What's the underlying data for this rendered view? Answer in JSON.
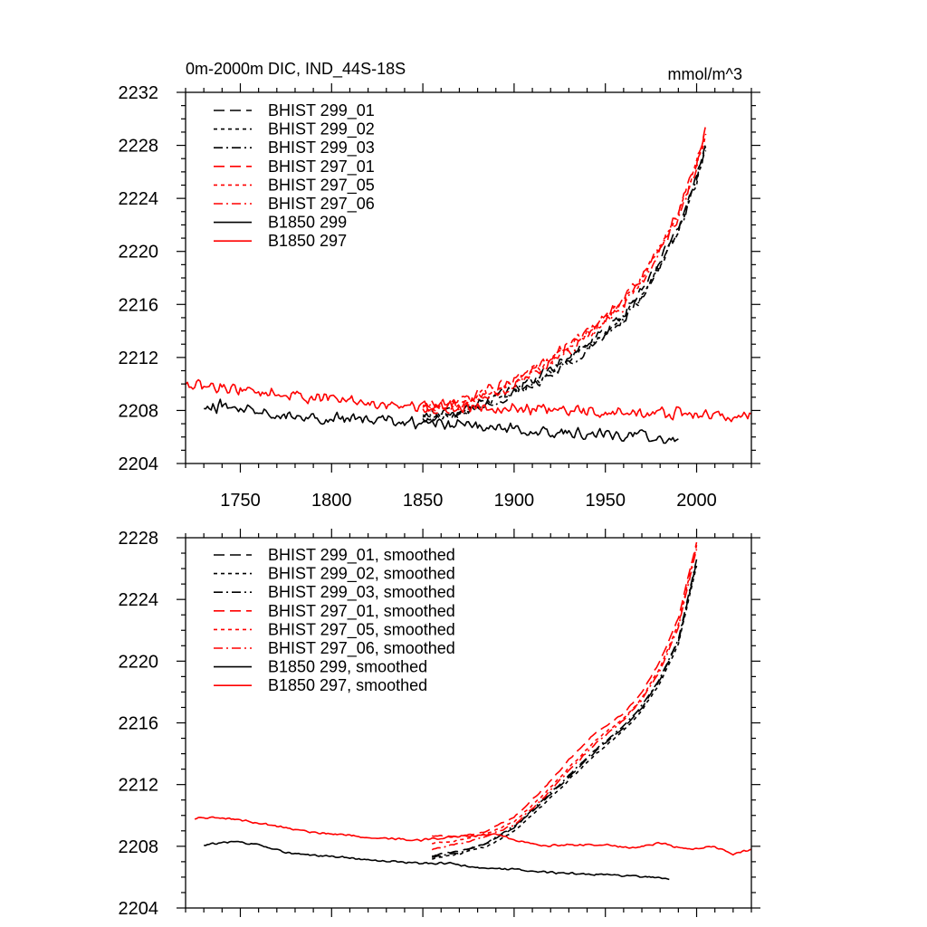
{
  "chart_data": [
    {
      "type": "line",
      "title": "0m-2000m DIC, IND_44S-18S",
      "units": "mmol/m^3",
      "xlabel": "",
      "ylabel": "",
      "xlim": [
        1720,
        2030
      ],
      "ylim": [
        2204,
        2232
      ],
      "xticks": [
        1750,
        1800,
        1850,
        1900,
        1950,
        2000
      ],
      "yticks": [
        2204,
        2208,
        2212,
        2216,
        2220,
        2224,
        2228,
        2232
      ],
      "show_x_tick_labels": true,
      "legend_position": "top-left",
      "series": [
        {
          "name": "BHIST 299_01",
          "color": "#000000",
          "dash": "long-dash",
          "noise": 0.45,
          "points": [
            [
              1850,
              2207.6
            ],
            [
              1870,
              2208.0
            ],
            [
              1890,
              2209.0
            ],
            [
              1910,
              2210.3
            ],
            [
              1930,
              2212.1
            ],
            [
              1950,
              2214.0
            ],
            [
              1960,
              2215.3
            ],
            [
              1970,
              2217.0
            ],
            [
              1980,
              2219.3
            ],
            [
              1990,
              2222.0
            ],
            [
              2000,
              2225.6
            ],
            [
              2005,
              2228.2
            ]
          ]
        },
        {
          "name": "BHIST 299_02",
          "color": "#000000",
          "dash": "short-dash",
          "noise": 0.45,
          "points": [
            [
              1850,
              2207.4
            ],
            [
              1870,
              2207.9
            ],
            [
              1890,
              2208.8
            ],
            [
              1910,
              2210.0
            ],
            [
              1930,
              2211.8
            ],
            [
              1950,
              2213.7
            ],
            [
              1960,
              2215.0
            ],
            [
              1970,
              2216.7
            ],
            [
              1980,
              2219.0
            ],
            [
              1990,
              2221.7
            ],
            [
              2000,
              2225.3
            ],
            [
              2005,
              2228.0
            ]
          ]
        },
        {
          "name": "BHIST 299_03",
          "color": "#000000",
          "dash": "dash-dot",
          "noise": 0.45,
          "points": [
            [
              1850,
              2207.3
            ],
            [
              1870,
              2207.8
            ],
            [
              1890,
              2208.7
            ],
            [
              1910,
              2209.9
            ],
            [
              1930,
              2211.6
            ],
            [
              1950,
              2213.6
            ],
            [
              1960,
              2214.9
            ],
            [
              1970,
              2216.6
            ],
            [
              1980,
              2218.9
            ],
            [
              1990,
              2221.6
            ],
            [
              2000,
              2225.2
            ],
            [
              2005,
              2227.8
            ]
          ]
        },
        {
          "name": "BHIST 297_01",
          "color": "#ff0000",
          "dash": "long-dash",
          "noise": 0.5,
          "points": [
            [
              1850,
              2208.3
            ],
            [
              1870,
              2208.7
            ],
            [
              1890,
              2209.7
            ],
            [
              1910,
              2211.1
            ],
            [
              1930,
              2213.0
            ],
            [
              1950,
              2215.0
            ],
            [
              1960,
              2216.4
            ],
            [
              1970,
              2218.1
            ],
            [
              1980,
              2220.4
            ],
            [
              1990,
              2223.1
            ],
            [
              2000,
              2226.7
            ],
            [
              2005,
              2229.2
            ]
          ]
        },
        {
          "name": "BHIST 297_05",
          "color": "#ff0000",
          "dash": "short-dash",
          "noise": 0.5,
          "points": [
            [
              1850,
              2208.1
            ],
            [
              1870,
              2208.5
            ],
            [
              1890,
              2209.5
            ],
            [
              1910,
              2210.9
            ],
            [
              1930,
              2212.8
            ],
            [
              1950,
              2214.8
            ],
            [
              1960,
              2216.2
            ],
            [
              1970,
              2217.9
            ],
            [
              1980,
              2220.2
            ],
            [
              1990,
              2222.9
            ],
            [
              2000,
              2226.5
            ],
            [
              2005,
              2229.0
            ]
          ]
        },
        {
          "name": "BHIST 297_06",
          "color": "#ff0000",
          "dash": "dash-dot",
          "noise": 0.5,
          "points": [
            [
              1850,
              2208.0
            ],
            [
              1870,
              2208.4
            ],
            [
              1890,
              2209.3
            ],
            [
              1910,
              2210.7
            ],
            [
              1930,
              2212.6
            ],
            [
              1950,
              2214.6
            ],
            [
              1960,
              2216.0
            ],
            [
              1970,
              2217.7
            ],
            [
              1980,
              2220.0
            ],
            [
              1990,
              2222.7
            ],
            [
              2000,
              2226.3
            ],
            [
              2005,
              2229.1
            ]
          ]
        },
        {
          "name": "B1850 299",
          "color": "#000000",
          "dash": "solid",
          "noise": 0.55,
          "points": [
            [
              1730,
              2208.0
            ],
            [
              1740,
              2208.4
            ],
            [
              1760,
              2208.1
            ],
            [
              1780,
              2207.6
            ],
            [
              1800,
              2207.4
            ],
            [
              1820,
              2207.3
            ],
            [
              1840,
              2207.1
            ],
            [
              1860,
              2207.0
            ],
            [
              1880,
              2206.8
            ],
            [
              1900,
              2206.6
            ],
            [
              1920,
              2206.4
            ],
            [
              1940,
              2206.3
            ],
            [
              1960,
              2206.1
            ],
            [
              1980,
              2206.0
            ],
            [
              1990,
              2205.7
            ]
          ]
        },
        {
          "name": "B1850 297",
          "color": "#ff0000",
          "dash": "solid",
          "noise": 0.55,
          "points": [
            [
              1720,
              2209.8
            ],
            [
              1740,
              2209.8
            ],
            [
              1760,
              2209.4
            ],
            [
              1780,
              2209.1
            ],
            [
              1800,
              2208.9
            ],
            [
              1820,
              2208.6
            ],
            [
              1840,
              2208.4
            ],
            [
              1860,
              2208.3
            ],
            [
              1880,
              2208.3
            ],
            [
              1900,
              2208.2
            ],
            [
              1920,
              2208.0
            ],
            [
              1940,
              2207.9
            ],
            [
              1960,
              2207.8
            ],
            [
              1980,
              2207.8
            ],
            [
              2000,
              2207.7
            ],
            [
              2020,
              2207.5
            ],
            [
              2030,
              2207.7
            ]
          ]
        }
      ]
    },
    {
      "type": "line",
      "title": "",
      "units": "",
      "xlabel": "",
      "ylabel": "",
      "xlim": [
        1720,
        2030
      ],
      "ylim": [
        2204,
        2228
      ],
      "xticks": [
        1750,
        1800,
        1850,
        1900,
        1950,
        2000
      ],
      "yticks": [
        2204,
        2208,
        2212,
        2216,
        2220,
        2224,
        2228
      ],
      "show_x_tick_labels": false,
      "legend_position": "top-left",
      "series": [
        {
          "name": "BHIST 299_01, smoothed",
          "color": "#000000",
          "dash": "long-dash",
          "noise": 0.06,
          "points": [
            [
              1855,
              2207.4
            ],
            [
              1870,
              2207.7
            ],
            [
              1885,
              2208.2
            ],
            [
              1900,
              2209.2
            ],
            [
              1915,
              2210.8
            ],
            [
              1930,
              2212.5
            ],
            [
              1945,
              2214.2
            ],
            [
              1960,
              2215.7
            ],
            [
              1970,
              2217.0
            ],
            [
              1980,
              2218.8
            ],
            [
              1990,
              2221.3
            ],
            [
              2000,
              2226.4
            ]
          ]
        },
        {
          "name": "BHIST 299_02, smoothed",
          "color": "#000000",
          "dash": "short-dash",
          "noise": 0.06,
          "points": [
            [
              1855,
              2207.2
            ],
            [
              1870,
              2207.5
            ],
            [
              1885,
              2208.0
            ],
            [
              1900,
              2209.0
            ],
            [
              1915,
              2210.6
            ],
            [
              1930,
              2212.3
            ],
            [
              1945,
              2214.0
            ],
            [
              1960,
              2215.5
            ],
            [
              1970,
              2216.8
            ],
            [
              1980,
              2218.6
            ],
            [
              1990,
              2221.1
            ],
            [
              2000,
              2226.2
            ]
          ]
        },
        {
          "name": "BHIST 299_03, smoothed",
          "color": "#000000",
          "dash": "dash-dot",
          "noise": 0.06,
          "points": [
            [
              1855,
              2207.3
            ],
            [
              1870,
              2207.6
            ],
            [
              1885,
              2208.2
            ],
            [
              1900,
              2209.3
            ],
            [
              1915,
              2210.9
            ],
            [
              1930,
              2212.6
            ],
            [
              1945,
              2214.3
            ],
            [
              1960,
              2215.8
            ],
            [
              1970,
              2217.1
            ],
            [
              1980,
              2218.9
            ],
            [
              1990,
              2221.4
            ],
            [
              2000,
              2226.6
            ]
          ]
        },
        {
          "name": "BHIST 297_01, smoothed",
          "color": "#ff0000",
          "dash": "long-dash",
          "noise": 0.06,
          "points": [
            [
              1855,
              2208.7
            ],
            [
              1870,
              2208.6
            ],
            [
              1885,
              2209.0
            ],
            [
              1900,
              2209.9
            ],
            [
              1915,
              2211.6
            ],
            [
              1930,
              2213.6
            ],
            [
              1945,
              2215.4
            ],
            [
              1960,
              2216.6
            ],
            [
              1970,
              2218.0
            ],
            [
              1980,
              2220.0
            ],
            [
              1990,
              2222.8
            ],
            [
              2000,
              2227.7
            ]
          ]
        },
        {
          "name": "BHIST 297_05, smoothed",
          "color": "#ff0000",
          "dash": "short-dash",
          "noise": 0.06,
          "points": [
            [
              1855,
              2208.2
            ],
            [
              1870,
              2208.4
            ],
            [
              1885,
              2208.8
            ],
            [
              1900,
              2209.6
            ],
            [
              1915,
              2211.2
            ],
            [
              1930,
              2213.1
            ],
            [
              1945,
              2214.9
            ],
            [
              1960,
              2216.3
            ],
            [
              1970,
              2217.6
            ],
            [
              1980,
              2219.6
            ],
            [
              1990,
              2222.4
            ],
            [
              2000,
              2227.5
            ]
          ]
        },
        {
          "name": "BHIST 297_06, smoothed",
          "color": "#ff0000",
          "dash": "dash-dot",
          "noise": 0.06,
          "points": [
            [
              1855,
              2207.8
            ],
            [
              1870,
              2208.2
            ],
            [
              1885,
              2208.6
            ],
            [
              1900,
              2209.4
            ],
            [
              1915,
              2211.0
            ],
            [
              1930,
              2212.9
            ],
            [
              1945,
              2214.7
            ],
            [
              1960,
              2216.2
            ],
            [
              1970,
              2217.5
            ],
            [
              1980,
              2219.4
            ],
            [
              1990,
              2222.2
            ],
            [
              2000,
              2227.3
            ]
          ]
        },
        {
          "name": "B1850 299, smoothed",
          "color": "#000000",
          "dash": "solid",
          "noise": 0.08,
          "points": [
            [
              1730,
              2208.1
            ],
            [
              1745,
              2208.3
            ],
            [
              1760,
              2208.1
            ],
            [
              1775,
              2207.6
            ],
            [
              1790,
              2207.4
            ],
            [
              1805,
              2207.3
            ],
            [
              1820,
              2207.1
            ],
            [
              1835,
              2207.0
            ],
            [
              1850,
              2206.9
            ],
            [
              1865,
              2206.9
            ],
            [
              1880,
              2206.6
            ],
            [
              1900,
              2206.5
            ],
            [
              1920,
              2206.3
            ],
            [
              1940,
              2206.2
            ],
            [
              1960,
              2206.1
            ],
            [
              1975,
              2206.0
            ],
            [
              1985,
              2205.9
            ]
          ]
        },
        {
          "name": "B1850 297, smoothed",
          "color": "#ff0000",
          "dash": "solid",
          "noise": 0.08,
          "points": [
            [
              1725,
              2209.8
            ],
            [
              1735,
              2209.9
            ],
            [
              1750,
              2209.7
            ],
            [
              1770,
              2209.3
            ],
            [
              1790,
              2208.9
            ],
            [
              1810,
              2208.7
            ],
            [
              1830,
              2208.5
            ],
            [
              1850,
              2208.4
            ],
            [
              1865,
              2208.6
            ],
            [
              1880,
              2208.7
            ],
            [
              1890,
              2208.8
            ],
            [
              1900,
              2208.4
            ],
            [
              1915,
              2208.0
            ],
            [
              1930,
              2208.1
            ],
            [
              1950,
              2208.1
            ],
            [
              1965,
              2207.9
            ],
            [
              1980,
              2208.2
            ],
            [
              1995,
              2207.8
            ],
            [
              2010,
              2208.0
            ],
            [
              2020,
              2207.5
            ],
            [
              2030,
              2207.8
            ]
          ]
        }
      ]
    }
  ]
}
